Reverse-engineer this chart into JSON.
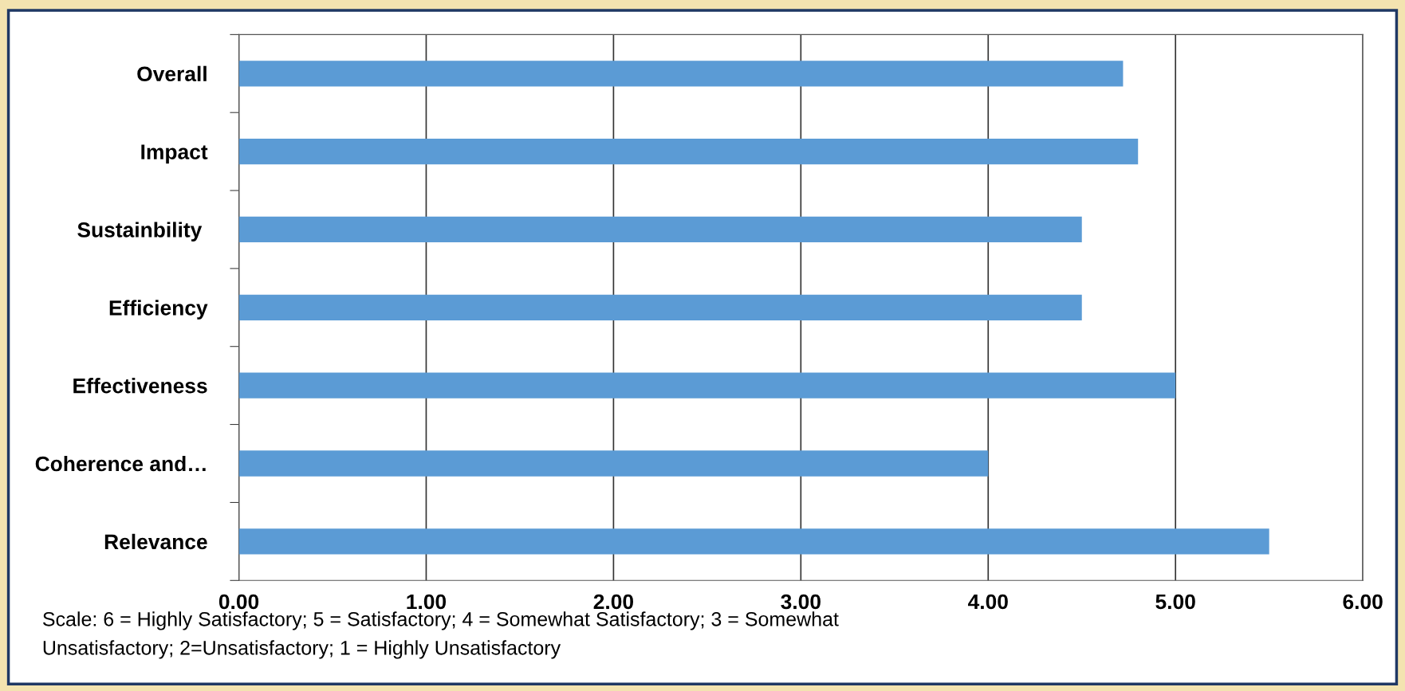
{
  "chart_data": {
    "type": "bar",
    "orientation": "horizontal",
    "categories": [
      "Overall",
      "Impact",
      "Sustainbility ",
      "Efficiency",
      "Effectiveness",
      "Coherence and…",
      "Relevance"
    ],
    "values": [
      4.72,
      4.8,
      4.5,
      4.5,
      5.0,
      4.0,
      5.5
    ],
    "color": "#5b9bd5",
    "xlim": [
      0,
      6
    ],
    "xticks": [
      {
        "value": 0,
        "label": "0.00"
      },
      {
        "value": 1,
        "label": "1.00"
      },
      {
        "value": 2,
        "label": "2.00"
      },
      {
        "value": 3,
        "label": "3.00"
      },
      {
        "value": 4,
        "label": "4.00"
      },
      {
        "value": 5,
        "label": "5.00"
      },
      {
        "value": 6,
        "label": "6.00"
      }
    ],
    "grid": "x",
    "annotations": [
      "Scale: 6 = Highly Satisfactory; 5 = Satisfactory; 4 = Somewhat Satisfactory; 3 = Somewhat\nUnsatisfactory; 2=Unsatisfactory; 1 = Highly Unsatisfactory"
    ]
  }
}
